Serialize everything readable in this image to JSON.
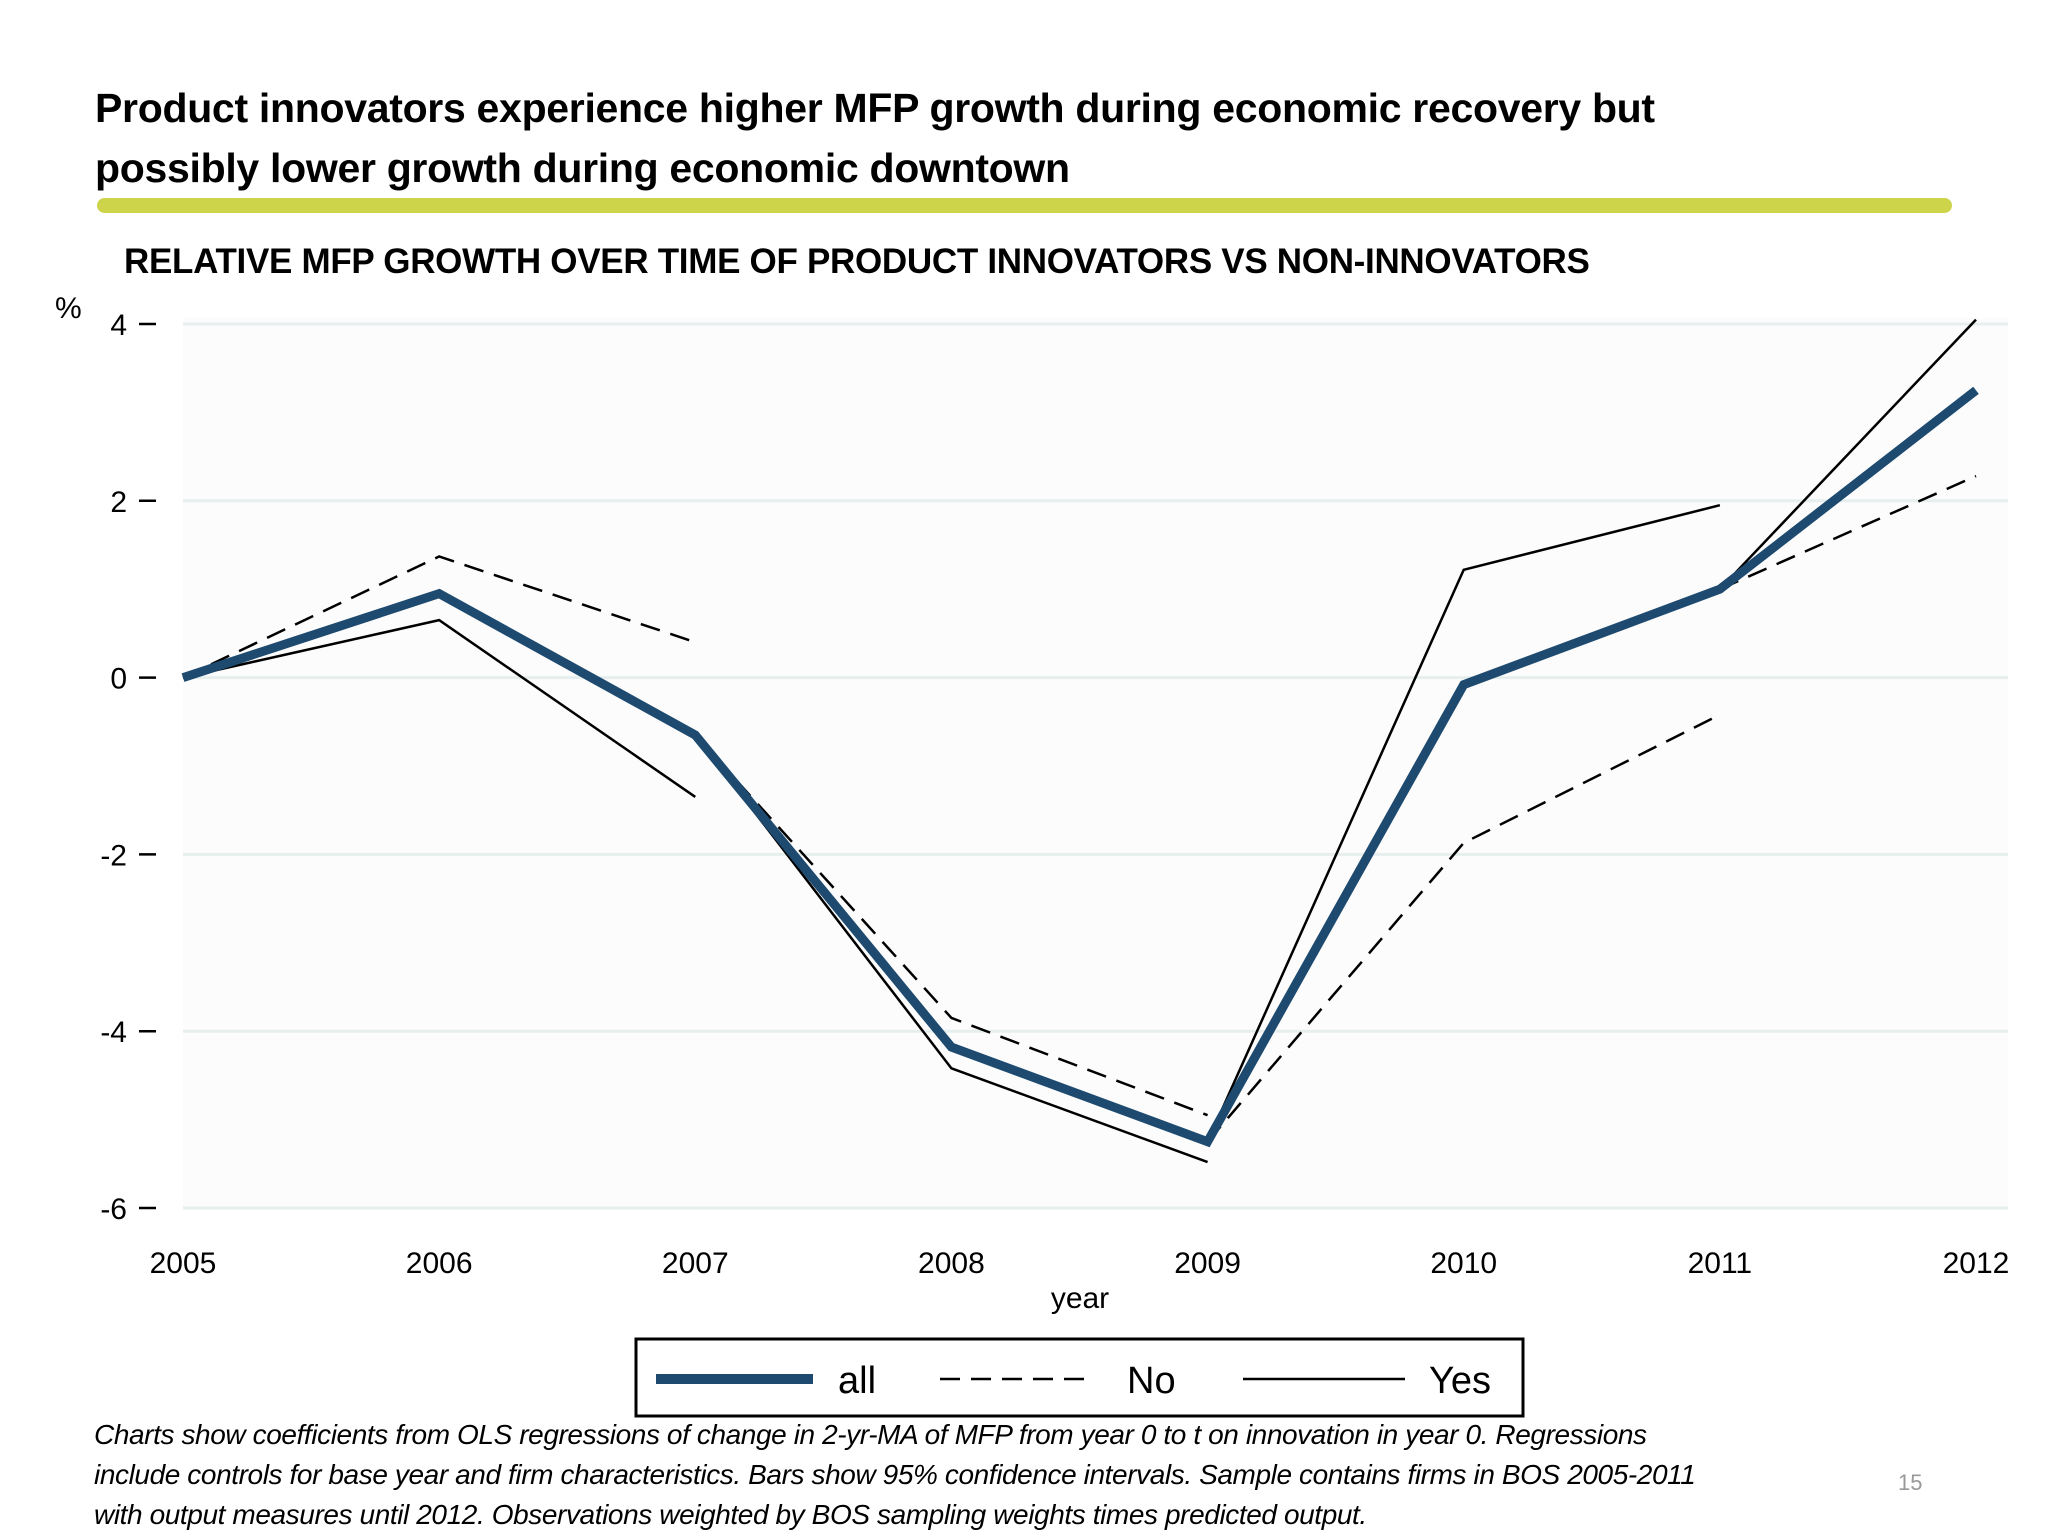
{
  "slide": {
    "title": "Product innovators experience higher MFP growth during economic recovery but possibly lower growth during economic downtown",
    "title_lines": [
      "Product innovators experience higher MFP growth during economic recovery but",
      "possibly lower growth during economic downtown"
    ],
    "accent_color": "#cdd44a",
    "footer_lines": [
      "Charts show coefficients from OLS regressions of change in 2-yr-MA of MFP from year 0 to t on innovation in year 0. Regressions",
      "include controls for base year and firm characteristics. Bars show 95% confidence intervals. Sample contains firms in BOS 2005-2011",
      "with output measures until 2012. Observations weighted by BOS sampling weights times predicted output."
    ],
    "page_number": "15"
  },
  "chart_data": {
    "type": "line",
    "title": "RELATIVE MFP GROWTH OVER TIME OF PRODUCT INNOVATORS VS NON-INNOVATORS",
    "xlabel": "year",
    "ylabel": "%",
    "x": [
      2005,
      2006,
      2007,
      2008,
      2009,
      2010,
      2011,
      2012
    ],
    "xlim": [
      2005,
      2012
    ],
    "ylim": [
      -6,
      4
    ],
    "yticks": [
      4,
      2,
      0,
      -2,
      -4,
      -6
    ],
    "xticks": [
      "2005",
      "2006",
      "2007",
      "2008",
      "2009",
      "2010",
      "2011",
      "2012"
    ],
    "grid": true,
    "legend_position": "bottom",
    "series": [
      {
        "name": "all",
        "style": "thick-solid",
        "color": "#1d4a6e",
        "segments": [
          [
            [
              2005,
              0
            ],
            [
              2006,
              0.95
            ],
            [
              2007,
              -0.65
            ],
            [
              2008,
              -4.18
            ],
            [
              2009,
              -5.25
            ],
            [
              2010,
              -0.08
            ],
            [
              2011,
              1.0
            ],
            [
              2012,
              3.25
            ]
          ]
        ]
      },
      {
        "name": "No",
        "style": "dashed",
        "color": "#000000",
        "segments": [
          [
            [
              2005,
              0
            ],
            [
              2006,
              1.37
            ],
            [
              2007,
              0.4
            ]
          ],
          [
            [
              2007,
              -0.65
            ],
            [
              2008,
              -3.85
            ],
            [
              2009,
              -4.95
            ]
          ],
          [
            [
              2009,
              -5.25
            ],
            [
              2010,
              -1.87
            ],
            [
              2011,
              -0.42
            ]
          ],
          [
            [
              2011,
              1.0
            ],
            [
              2012,
              2.28
            ]
          ]
        ]
      },
      {
        "name": "Yes",
        "style": "solid",
        "color": "#000000",
        "segments": [
          [
            [
              2005,
              0
            ],
            [
              2006,
              0.65
            ],
            [
              2007,
              -1.35
            ]
          ],
          [
            [
              2007,
              -0.65
            ],
            [
              2008,
              -4.42
            ],
            [
              2009,
              -5.48
            ]
          ],
          [
            [
              2009,
              -5.25
            ],
            [
              2010,
              1.22
            ],
            [
              2011,
              1.95
            ]
          ],
          [
            [
              2011,
              1.0
            ],
            [
              2012,
              4.05
            ]
          ]
        ]
      }
    ]
  }
}
